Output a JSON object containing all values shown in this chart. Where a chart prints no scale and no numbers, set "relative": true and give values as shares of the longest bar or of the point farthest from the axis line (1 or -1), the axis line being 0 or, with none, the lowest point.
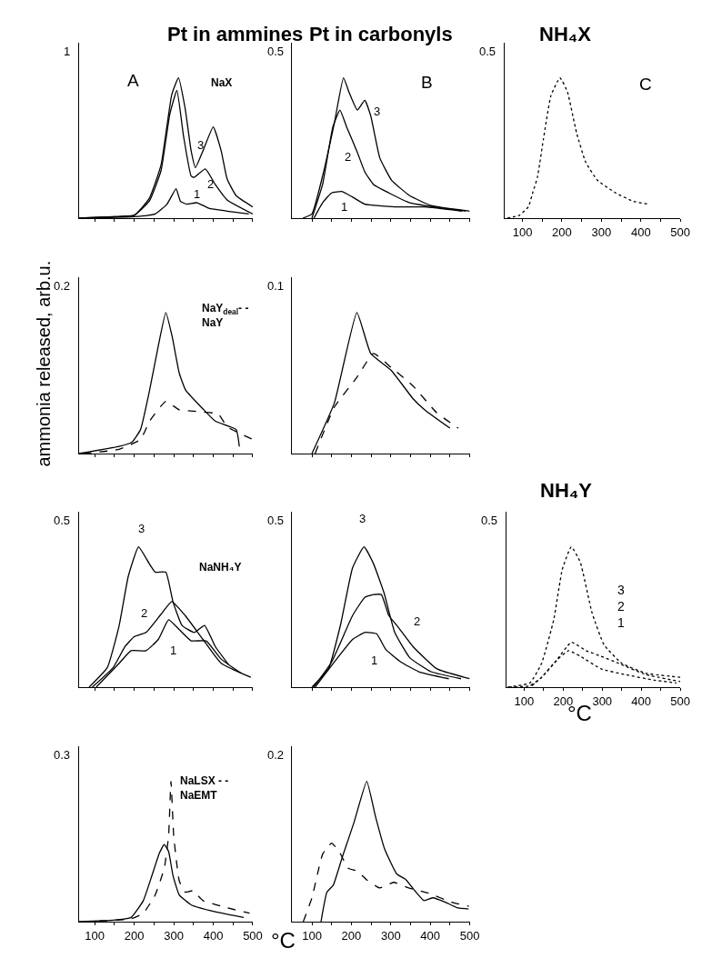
{
  "chart_data": [
    {
      "type": "line",
      "title": "Pt in ammines",
      "relative": true,
      "xlim": [
        60,
        500
      ],
      "xticks": [
        100,
        {
          "value": 150,
          "label": null
        },
        200,
        {
          "value": 250,
          "label": null
        },
        300,
        {
          "value": 350,
          "label": null
        },
        400,
        {
          "value": 450,
          "label": null
        },
        500
      ],
      "tick_labels": false,
      "series": [
        {
          "color": "#000000",
          "line_style": "solid",
          "x": [
            60,
            150,
            200,
            238,
            268,
            295,
            312,
            329,
            344,
            355,
            374,
            400,
            420,
            435,
            458,
            500
          ],
          "values": [
            0,
            0.01,
            0.02,
            0.14,
            0.38,
            0.88,
            1,
            0.78,
            0.48,
            0.36,
            0.48,
            0.65,
            0.48,
            0.28,
            0.16,
            0.08
          ]
        },
        {
          "color": "#000000",
          "line_style": "solid",
          "x": [
            60,
            150,
            200,
            238,
            268,
            290,
            308,
            325,
            344,
            351,
            380,
            405,
            435,
            500
          ],
          "values": [
            0,
            0.01,
            0.02,
            0.12,
            0.34,
            0.74,
            0.91,
            0.58,
            0.3,
            0.29,
            0.35,
            0.24,
            0.13,
            0.03
          ]
        },
        {
          "color": "#000000",
          "line_style": "solid",
          "x": [
            70,
            200,
            253,
            283,
            306,
            317,
            333,
            359,
            389,
            435,
            490
          ],
          "values": [
            0,
            0.01,
            0.03,
            0.1,
            0.21,
            0.12,
            0.1,
            0.11,
            0.07,
            0.05,
            0.03
          ]
        }
      ],
      "annotations": [
        "1",
        "A",
        "NaX",
        "3",
        "2",
        "1"
      ]
    },
    {
      "type": "line",
      "title": "Pt in carbonyls",
      "relative": true,
      "xlim": [
        50,
        500
      ],
      "xticks": [
        100,
        {
          "value": 150,
          "label": null
        },
        200,
        {
          "value": 250,
          "label": null
        },
        300,
        {
          "value": 350,
          "label": null
        },
        400,
        {
          "value": 450,
          "label": null
        },
        500
      ],
      "tick_labels": false,
      "series": [
        {
          "color": "#000000",
          "line_style": "solid",
          "x": [
            77,
            100,
            127,
            157,
            180,
            195,
            215,
            234,
            249,
            272,
            302,
            348,
            402,
            500
          ],
          "values": [
            0,
            0.03,
            0.3,
            0.68,
            1,
            0.89,
            0.77,
            0.84,
            0.73,
            0.43,
            0.27,
            0.16,
            0.09,
            0.05
          ]
        },
        {
          "color": "#000000",
          "line_style": "solid",
          "x": [
            100,
            127,
            153,
            171,
            188,
            215,
            234,
            256,
            295,
            348,
            490
          ],
          "values": [
            0,
            0.24,
            0.65,
            0.77,
            0.65,
            0.47,
            0.33,
            0.24,
            0.18,
            0.11,
            0.05
          ]
        },
        {
          "color": "#000000",
          "line_style": "solid",
          "x": [
            105,
            127,
            150,
            176,
            203,
            234,
            310,
            386,
            480
          ],
          "values": [
            0,
            0.11,
            0.18,
            0.19,
            0.15,
            0.1,
            0.08,
            0.08,
            0.05
          ]
        }
      ],
      "annotations": [
        "0.5",
        "B",
        "3",
        "2",
        "1"
      ]
    },
    {
      "type": "line",
      "title": "NH₄X",
      "relative": true,
      "xlim": [
        55,
        500
      ],
      "xticks": [
        100,
        {
          "value": 150,
          "label": null
        },
        200,
        {
          "value": 250,
          "label": null
        },
        300,
        {
          "value": 350,
          "label": null
        },
        400,
        {
          "value": 450,
          "label": null
        },
        500
      ],
      "tick_labels": "x",
      "series": [
        {
          "color": "#000000",
          "line_style": "dotted",
          "x": [
            62,
            92,
            115,
            127,
            138,
            153,
            172,
            195,
            214,
            237,
            260,
            290,
            336,
            381,
            419
          ],
          "values": [
            0,
            0.02,
            0.08,
            0.19,
            0.29,
            0.56,
            0.87,
            1,
            0.9,
            0.61,
            0.4,
            0.27,
            0.18,
            0.12,
            0.1
          ]
        }
      ],
      "annotations": [
        "0.5",
        "C"
      ]
    },
    {
      "type": "line",
      "ylabel": "ammonia released, arb.u.",
      "relative": true,
      "xlim": [
        60,
        500
      ],
      "xticks": [
        100,
        {
          "value": 150,
          "label": null
        },
        200,
        {
          "value": 250,
          "label": null
        },
        300,
        {
          "value": 350,
          "label": null
        },
        400,
        {
          "value": 450,
          "label": null
        },
        500
      ],
      "tick_labels": false,
      "series": [
        {
          "color": "#000000",
          "line_style": "solid",
          "x": [
            60,
            162,
            194,
            216,
            239,
            260,
            280,
            296,
            314,
            330,
            376,
            405,
            458,
            466
          ],
          "values": [
            0,
            0.05,
            0.08,
            0.17,
            0.45,
            0.75,
            1,
            0.83,
            0.57,
            0.45,
            0.31,
            0.23,
            0.17,
            0.05
          ]
        },
        {
          "color": "#000000",
          "line_style": "dashed",
          "x": [
            70,
            162,
            216,
            239,
            280,
            314,
            352,
            413,
            435,
            500
          ],
          "values": [
            0,
            0.03,
            0.1,
            0.23,
            0.37,
            0.31,
            0.3,
            0.28,
            0.19,
            0.1
          ]
        }
      ],
      "annotations": [
        "0.2",
        "NaY$_{deal}$- -\nNaY"
      ]
    },
    {
      "type": "line",
      "relative": true,
      "xlim": [
        50,
        500
      ],
      "xticks": [
        100,
        {
          "value": 150,
          "label": null
        },
        200,
        {
          "value": 250,
          "label": null
        },
        300,
        {
          "value": 350,
          "label": null
        },
        400,
        {
          "value": 450,
          "label": null
        },
        500
      ],
      "tick_labels": false,
      "series": [
        {
          "color": "#000000",
          "line_style": "solid",
          "x": [
            100,
            157,
            214,
            249,
            301,
            356,
            386,
            450
          ],
          "values": [
            0,
            0.36,
            1,
            0.71,
            0.59,
            0.39,
            0.31,
            0.18
          ]
        },
        {
          "color": "#000000",
          "line_style": "dashed",
          "x": [
            108,
            157,
            214,
            256,
            301,
            356,
            416,
            471
          ],
          "values": [
            0,
            0.33,
            0.54,
            0.71,
            0.61,
            0.48,
            0.29,
            0.18
          ]
        }
      ],
      "annotations": [
        "0.1"
      ]
    },
    {
      "type": "line",
      "relative": true,
      "xlim": [
        60,
        500
      ],
      "xticks": [
        100,
        {
          "value": 150,
          "label": null
        },
        200,
        {
          "value": 250,
          "label": null
        },
        300,
        {
          "value": 350,
          "label": null
        },
        400,
        {
          "value": 450,
          "label": null
        },
        500
      ],
      "tick_labels": false,
      "series": [
        {
          "color": "#000000",
          "line_style": "solid",
          "x": [
            86,
            132,
            162,
            185,
            211,
            238,
            253,
            280,
            298,
            321,
            352,
            378,
            405,
            439
          ],
          "values": [
            0,
            0.14,
            0.44,
            0.79,
            1,
            0.88,
            0.82,
            0.82,
            0.61,
            0.44,
            0.39,
            0.44,
            0.29,
            0.16
          ]
        },
        {
          "color": "#000000",
          "line_style": "solid",
          "x": [
            94,
            147,
            177,
            200,
            230,
            268,
            295,
            329,
            374,
            420,
            495
          ],
          "values": [
            0,
            0.14,
            0.29,
            0.36,
            0.39,
            0.52,
            0.61,
            0.51,
            0.34,
            0.17,
            0.07
          ]
        },
        {
          "color": "#000000",
          "line_style": "solid",
          "x": [
            104,
            162,
            192,
            230,
            261,
            287,
            314,
            344,
            382,
            420,
            470
          ],
          "values": [
            0,
            0.17,
            0.26,
            0.26,
            0.34,
            0.48,
            0.41,
            0.33,
            0.33,
            0.2,
            0.1
          ]
        }
      ],
      "annotations": [
        "0.5",
        "NaNH₄Y",
        "3",
        "2",
        "1"
      ]
    },
    {
      "type": "line",
      "relative": true,
      "xlim": [
        50,
        500
      ],
      "xticks": [
        100,
        {
          "value": 150,
          "label": null
        },
        200,
        {
          "value": 250,
          "label": null
        },
        300,
        {
          "value": 350,
          "label": null
        },
        400,
        {
          "value": 450,
          "label": null
        },
        500
      ],
      "tick_labels": false,
      "series": [
        {
          "color": "#000000",
          "line_style": "solid",
          "x": [
            100,
            142,
            173,
            203,
            232,
            256,
            283,
            310,
            348,
            402,
            478
          ],
          "values": [
            0,
            0.13,
            0.45,
            0.85,
            1,
            0.88,
            0.67,
            0.39,
            0.21,
            0.11,
            0.06
          ]
        },
        {
          "color": "#000000",
          "line_style": "solid",
          "x": [
            104,
            150,
            203,
            234,
            256,
            276,
            295,
            318,
            356,
            417,
            500
          ],
          "values": [
            0,
            0.18,
            0.51,
            0.64,
            0.66,
            0.66,
            0.51,
            0.43,
            0.29,
            0.13,
            0.06
          ]
        },
        {
          "color": "#000000",
          "line_style": "solid",
          "x": [
            108,
            157,
            203,
            234,
            264,
            287,
            325,
            371,
            447
          ],
          "values": [
            0,
            0.18,
            0.34,
            0.39,
            0.38,
            0.27,
            0.18,
            0.11,
            0.06
          ]
        }
      ],
      "annotations": [
        "0.5",
        "3",
        "2",
        "1"
      ]
    },
    {
      "type": "line",
      "title": "NH₄Y",
      "xlabel": "°C",
      "relative": true,
      "xlim": [
        55,
        500
      ],
      "xticks": [
        100,
        {
          "value": 150,
          "label": null
        },
        200,
        {
          "value": 250,
          "label": null
        },
        300,
        {
          "value": 350,
          "label": null
        },
        400,
        {
          "value": 450,
          "label": null
        },
        500
      ],
      "tick_labels": "x",
      "series": [
        {
          "color": "#000000",
          "line_style": "dotted",
          "x": [
            58,
            115,
            145,
            176,
            198,
            221,
            244,
            274,
            305,
            350,
            411,
            500
          ],
          "values": [
            0,
            0.03,
            0.17,
            0.48,
            0.84,
            1,
            0.89,
            0.53,
            0.3,
            0.17,
            0.1,
            0.07
          ]
        },
        {
          "color": "#000000",
          "line_style": "dotted",
          "x": [
            62,
            115,
            145,
            183,
            221,
            259,
            297,
            342,
            411,
            500
          ],
          "values": [
            0,
            0.01,
            0.07,
            0.19,
            0.32,
            0.26,
            0.22,
            0.17,
            0.09,
            0.04
          ]
        },
        {
          "color": "#000000",
          "line_style": "dotted",
          "x": [
            120,
            145,
            183,
            214,
            244,
            297,
            358,
            433,
            490
          ],
          "values": [
            0.01,
            0.07,
            0.19,
            0.26,
            0.22,
            0.13,
            0.09,
            0.05,
            0.03
          ]
        }
      ],
      "annotations": [
        "0.5",
        "3\n2\n1"
      ]
    },
    {
      "type": "line",
      "xlabel": "°C",
      "relative": true,
      "xlim": [
        60,
        500
      ],
      "xticks": [
        100,
        {
          "value": 150,
          "label": null
        },
        200,
        {
          "value": 250,
          "label": null
        },
        300,
        {
          "value": 350,
          "label": null
        },
        400,
        {
          "value": 450,
          "label": null
        },
        500
      ],
      "tick_labels": "x",
      "series": [
        {
          "color": "#000000",
          "line_style": "solid",
          "x": [
            60,
            147,
            192,
            223,
            245,
            264,
            276,
            287,
            298,
            314,
            344,
            405,
            477
          ],
          "values": [
            0,
            0.01,
            0.03,
            0.15,
            0.33,
            0.49,
            0.55,
            0.5,
            0.33,
            0.19,
            0.12,
            0.07,
            0.03
          ]
        },
        {
          "color": "#000000",
          "line_style": "dashed",
          "x": [
            70,
            192,
            223,
            253,
            276,
            287,
            293,
            300,
            314,
            329,
            348,
            374,
            420,
            492
          ],
          "values": [
            0,
            0.02,
            0.06,
            0.19,
            0.38,
            0.61,
            1,
            0.61,
            0.29,
            0.21,
            0.22,
            0.15,
            0.11,
            0.06
          ]
        }
      ],
      "annotations": [
        "0.3",
        "NaLSX - -\nNaEMT"
      ]
    },
    {
      "type": "line",
      "relative": true,
      "xlim": [
        50,
        500
      ],
      "xticks": [
        100,
        {
          "value": 150,
          "label": null
        },
        200,
        {
          "value": 250,
          "label": null
        },
        300,
        {
          "value": 350,
          "label": null
        },
        400,
        {
          "value": 450,
          "label": null
        },
        500
      ],
      "tick_labels": "x",
      "series": [
        {
          "color": "#000000",
          "line_style": "solid",
          "x": [
            123,
            138,
            154,
            177,
            207,
            239,
            261,
            284,
            315,
            338,
            361,
            384,
            407,
            437,
            468,
            497
          ],
          "values": [
            0,
            0.21,
            0.26,
            0.46,
            0.71,
            1,
            0.75,
            0.52,
            0.34,
            0.3,
            0.22,
            0.15,
            0.17,
            0.14,
            0.1,
            0.09
          ]
        },
        {
          "color": "#000000",
          "line_style": "dashed",
          "x": [
            78,
            100,
            127,
            150,
            169,
            192,
            215,
            238,
            272,
            307,
            345,
            399,
            452,
            498
          ],
          "values": [
            0,
            0.17,
            0.48,
            0.56,
            0.5,
            0.38,
            0.36,
            0.3,
            0.24,
            0.28,
            0.24,
            0.2,
            0.14,
            0.11
          ]
        }
      ],
      "annotations": [
        "0.2"
      ]
    }
  ]
}
